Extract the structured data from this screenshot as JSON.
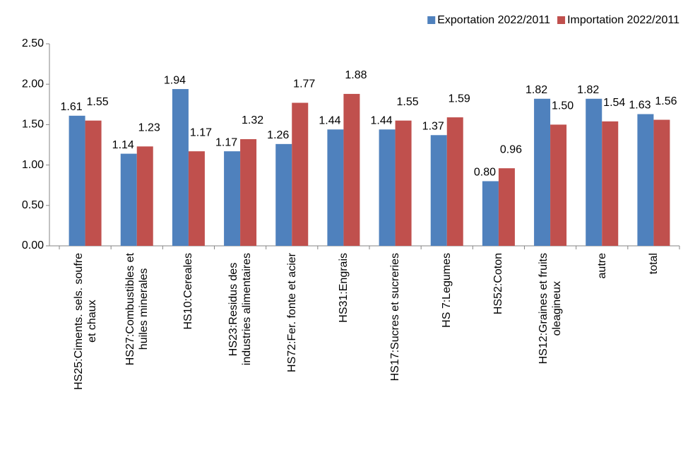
{
  "chart_data": {
    "type": "bar",
    "categories": [
      "HS25:Ciments. sels. soufre\net chaux",
      "HS27:Combustibles et\nhuiles minerales",
      "HS10:Cereales",
      "HS23:Residus des\nindustries alimentaires",
      "HS72:Fer. fonte et acier",
      "HS31:Engrais",
      "HS17:Sucres et sucreries",
      "HS 7:Legumes",
      "HS52:Coton",
      "HS12:Graines et fruits\noleagineux",
      "autre",
      "total"
    ],
    "series": [
      {
        "name": "Exportation 2022/2011",
        "color": "#4f81bd",
        "values": [
          1.61,
          1.14,
          1.94,
          1.17,
          1.26,
          1.44,
          1.44,
          1.37,
          0.8,
          1.82,
          1.82,
          1.63
        ],
        "value_labels": [
          "1.61",
          "1.14",
          "1.94",
          "1.17",
          "1.26",
          "1.44",
          "1.44",
          "1.37",
          "0.80",
          "1.82",
          "1.82",
          "1.63"
        ]
      },
      {
        "name": "Importation 2022/2011",
        "color": "#c0504d",
        "values": [
          1.55,
          1.23,
          1.17,
          1.32,
          1.77,
          1.88,
          1.55,
          1.59,
          0.96,
          1.5,
          1.54,
          1.56
        ],
        "value_labels": [
          "1.55",
          "1.23",
          "1.17",
          "1.32",
          "1.77",
          "1.88",
          "1.55",
          "1.59",
          "0.96",
          "1.50",
          "1.54",
          "1.56"
        ]
      }
    ],
    "ylim": [
      0,
      2.5
    ],
    "yticks": [
      {
        "value": 0,
        "label": "0.00"
      },
      {
        "value": 0.5,
        "label": "0.50"
      },
      {
        "value": 1,
        "label": "1.00"
      },
      {
        "value": 1.5,
        "label": "1.50"
      },
      {
        "value": 2,
        "label": "2.00"
      },
      {
        "value": 2.5,
        "label": "2.50"
      }
    ],
    "grid": false,
    "legend": "top-right"
  }
}
